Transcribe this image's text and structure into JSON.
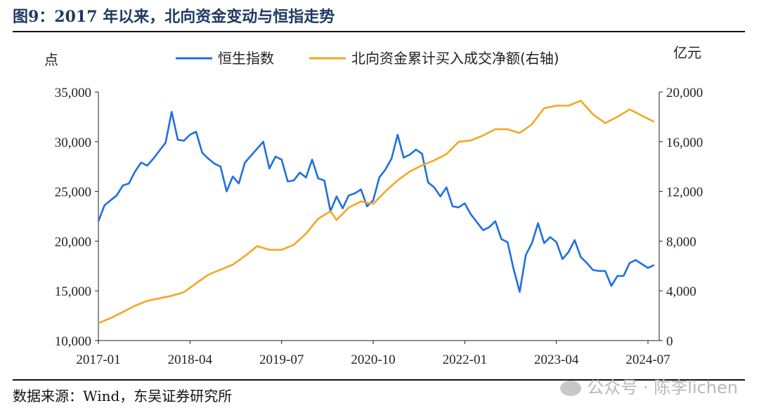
{
  "figure": {
    "title": "图9：2017 年以来，北向资金变动与恒指走势",
    "source": "数据来源：Wind，东吴证券研究所",
    "watermark": "公众号 · 陈李lichen"
  },
  "colors": {
    "hsi": "#1f6fe0",
    "northbound": "#f5a623",
    "title": "#1f3a63"
  },
  "chart_data": {
    "type": "line",
    "left_axis": {
      "unit_label": "点",
      "ylim": [
        10000,
        35000
      ],
      "ticks": [
        10000,
        15000,
        20000,
        25000,
        30000,
        35000
      ]
    },
    "right_axis": {
      "unit_label": "亿元",
      "ylim": [
        0,
        20000
      ],
      "ticks": [
        0,
        4000,
        8000,
        12000,
        16000,
        20000
      ]
    },
    "x_ticks": [
      "2017-01",
      "2018-04",
      "2019-07",
      "2020-10",
      "2022-01",
      "2023-04",
      "2024-07"
    ],
    "legend_placement": "top",
    "grid": false,
    "series": [
      {
        "name": "恒生指数",
        "axis": "left",
        "color": "#1f6fe0",
        "points": [
          [
            "2017-01",
            22000
          ],
          [
            "2017-02",
            23600
          ],
          [
            "2017-03",
            24100
          ],
          [
            "2017-04",
            24600
          ],
          [
            "2017-05",
            25600
          ],
          [
            "2017-06",
            25800
          ],
          [
            "2017-07",
            27000
          ],
          [
            "2017-08",
            27900
          ],
          [
            "2017-09",
            27600
          ],
          [
            "2017-10",
            28300
          ],
          [
            "2017-11",
            29100
          ],
          [
            "2017-12",
            29900
          ],
          [
            "2018-01",
            33000
          ],
          [
            "2018-02",
            30200
          ],
          [
            "2018-03",
            30100
          ],
          [
            "2018-04",
            30700
          ],
          [
            "2018-05",
            31000
          ],
          [
            "2018-06",
            28900
          ],
          [
            "2018-07",
            28300
          ],
          [
            "2018-08",
            27800
          ],
          [
            "2018-09",
            27500
          ],
          [
            "2018-10",
            25000
          ],
          [
            "2018-11",
            26500
          ],
          [
            "2018-12",
            25800
          ],
          [
            "2019-01",
            27900
          ],
          [
            "2019-02",
            28600
          ],
          [
            "2019-03",
            29300
          ],
          [
            "2019-04",
            30000
          ],
          [
            "2019-05",
            27300
          ],
          [
            "2019-06",
            28500
          ],
          [
            "2019-07",
            28200
          ],
          [
            "2019-08",
            26000
          ],
          [
            "2019-09",
            26100
          ],
          [
            "2019-10",
            26900
          ],
          [
            "2019-11",
            26400
          ],
          [
            "2019-12",
            28200
          ],
          [
            "2020-01",
            26300
          ],
          [
            "2020-02",
            26100
          ],
          [
            "2020-03",
            23000
          ],
          [
            "2020-04",
            24500
          ],
          [
            "2020-05",
            23300
          ],
          [
            "2020-06",
            24600
          ],
          [
            "2020-07",
            24800
          ],
          [
            "2020-08",
            25200
          ],
          [
            "2020-09",
            23500
          ],
          [
            "2020-10",
            24100
          ],
          [
            "2020-11",
            26400
          ],
          [
            "2020-12",
            27200
          ],
          [
            "2021-01",
            28300
          ],
          [
            "2021-02",
            30700
          ],
          [
            "2021-03",
            28400
          ],
          [
            "2021-04",
            28700
          ],
          [
            "2021-05",
            29200
          ],
          [
            "2021-06",
            28800
          ],
          [
            "2021-07",
            25900
          ],
          [
            "2021-08",
            25400
          ],
          [
            "2021-09",
            24500
          ],
          [
            "2021-10",
            25400
          ],
          [
            "2021-11",
            23500
          ],
          [
            "2021-12",
            23400
          ],
          [
            "2022-01",
            23800
          ],
          [
            "2022-02",
            22700
          ],
          [
            "2022-03",
            21900
          ],
          [
            "2022-04",
            21100
          ],
          [
            "2022-05",
            21400
          ],
          [
            "2022-06",
            22000
          ],
          [
            "2022-07",
            20200
          ],
          [
            "2022-08",
            19900
          ],
          [
            "2022-09",
            17200
          ],
          [
            "2022-10",
            14900
          ],
          [
            "2022-11",
            18600
          ],
          [
            "2022-12",
            19800
          ],
          [
            "2023-01",
            21800
          ],
          [
            "2023-02",
            19800
          ],
          [
            "2023-03",
            20400
          ],
          [
            "2023-04",
            19900
          ],
          [
            "2023-05",
            18200
          ],
          [
            "2023-06",
            18900
          ],
          [
            "2023-07",
            20100
          ],
          [
            "2023-08",
            18400
          ],
          [
            "2023-09",
            17800
          ],
          [
            "2023-10",
            17100
          ],
          [
            "2023-11",
            17000
          ],
          [
            "2023-12",
            17000
          ],
          [
            "2024-01",
            15500
          ],
          [
            "2024-02",
            16500
          ],
          [
            "2024-03",
            16500
          ],
          [
            "2024-04",
            17800
          ],
          [
            "2024-05",
            18100
          ],
          [
            "2024-06",
            17700
          ],
          [
            "2024-07",
            17300
          ],
          [
            "2024-08",
            17600
          ]
        ]
      },
      {
        "name": "北向资金累计买入成交净额(右轴)",
        "axis": "right",
        "color": "#f5a623",
        "points": [
          [
            "2017-01",
            1400
          ],
          [
            "2017-03",
            1800
          ],
          [
            "2017-05",
            2300
          ],
          [
            "2017-07",
            2800
          ],
          [
            "2017-09",
            3200
          ],
          [
            "2017-11",
            3400
          ],
          [
            "2018-01",
            3600
          ],
          [
            "2018-03",
            3900
          ],
          [
            "2018-05",
            4600
          ],
          [
            "2018-07",
            5300
          ],
          [
            "2018-09",
            5700
          ],
          [
            "2018-11",
            6100
          ],
          [
            "2019-01",
            6800
          ],
          [
            "2019-03",
            7600
          ],
          [
            "2019-05",
            7300
          ],
          [
            "2019-07",
            7300
          ],
          [
            "2019-09",
            7700
          ],
          [
            "2019-11",
            8600
          ],
          [
            "2020-01",
            9800
          ],
          [
            "2020-03",
            10400
          ],
          [
            "2020-04",
            9700
          ],
          [
            "2020-06",
            10700
          ],
          [
            "2020-08",
            11200
          ],
          [
            "2020-10",
            11000
          ],
          [
            "2020-12",
            12000
          ],
          [
            "2021-02",
            12900
          ],
          [
            "2021-04",
            13600
          ],
          [
            "2021-06",
            14100
          ],
          [
            "2021-08",
            14500
          ],
          [
            "2021-10",
            15000
          ],
          [
            "2021-12",
            16000
          ],
          [
            "2022-02",
            16100
          ],
          [
            "2022-04",
            16500
          ],
          [
            "2022-06",
            17000
          ],
          [
            "2022-08",
            17000
          ],
          [
            "2022-10",
            16700
          ],
          [
            "2022-12",
            17400
          ],
          [
            "2023-02",
            18700
          ],
          [
            "2023-04",
            18900
          ],
          [
            "2023-06",
            18900
          ],
          [
            "2023-08",
            19300
          ],
          [
            "2023-10",
            18200
          ],
          [
            "2023-12",
            17500
          ],
          [
            "2024-02",
            18000
          ],
          [
            "2024-04",
            18600
          ],
          [
            "2024-06",
            18100
          ],
          [
            "2024-08",
            17600
          ]
        ]
      }
    ]
  }
}
